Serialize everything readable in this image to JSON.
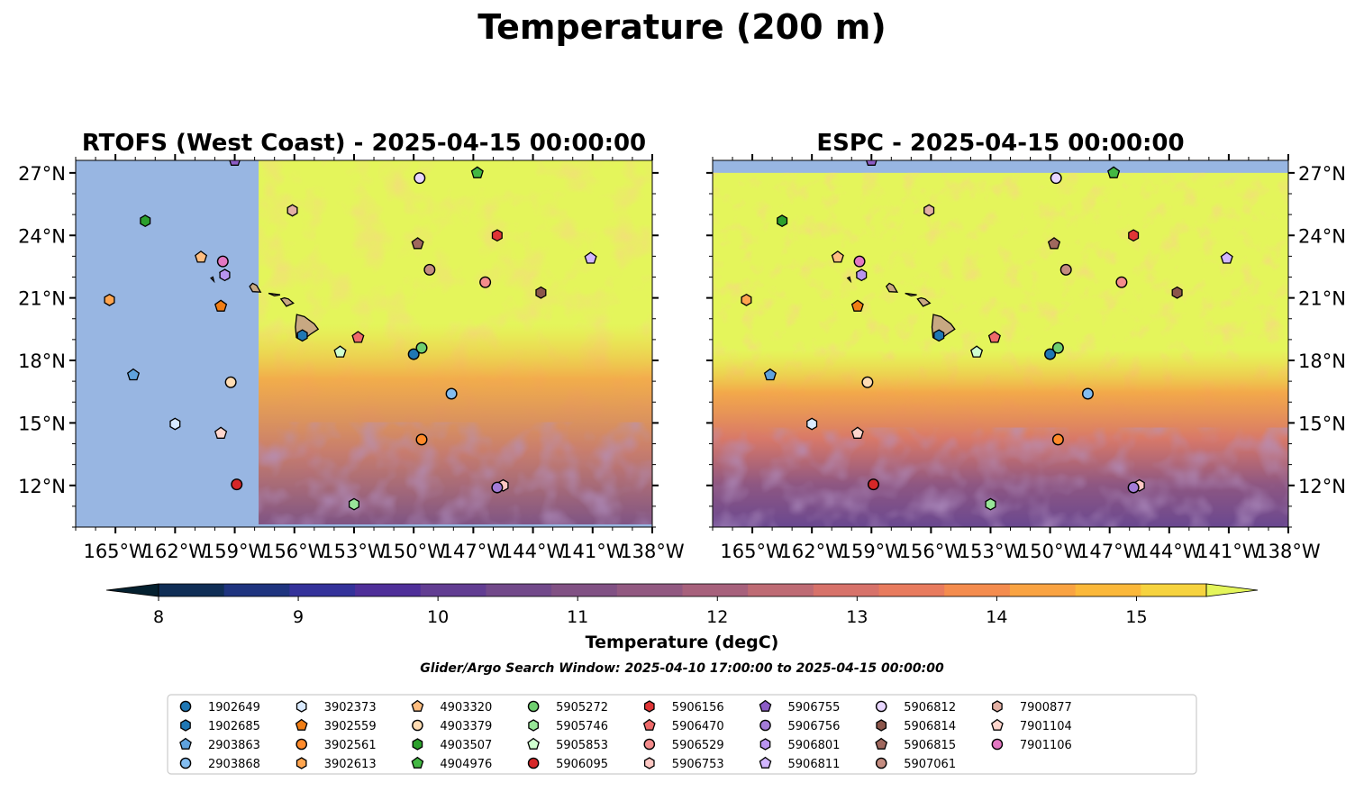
{
  "figure": {
    "title": "Temperature (200 m)",
    "search_window": "Glider/Argo Search Window: 2025-04-10 17:00:00 to 2025-04-15 00:00:00"
  },
  "panels": [
    {
      "title": "RTOFS (West Coast) - 2025-04-15 00:00:00",
      "ylabels_side": "left",
      "model_domain_west_lon": -157.8
    },
    {
      "title": "ESPC - 2025-04-15 00:00:00",
      "ylabels_side": "right",
      "model_domain_north_lat": 27.0
    }
  ],
  "axes": {
    "lon_range": [
      -167,
      -138
    ],
    "lat_range": [
      10,
      27.6
    ],
    "lon_ticks": [
      -165,
      -162,
      -159,
      -156,
      -153,
      -150,
      -147,
      -144,
      -141,
      -138
    ],
    "lon_labels": [
      "165°W",
      "162°W",
      "159°W",
      "156°W",
      "153°W",
      "150°W",
      "147°W",
      "144°W",
      "141°W",
      "138°W"
    ],
    "lat_ticks": [
      12,
      15,
      18,
      21,
      24,
      27
    ],
    "lat_labels": [
      "12°N",
      "15°N",
      "18°N",
      "21°N",
      "24°N",
      "27°N"
    ]
  },
  "colorbar": {
    "label": "Temperature (degC)",
    "range": [
      8,
      15.5
    ],
    "tick_values": [
      8,
      9,
      10,
      11,
      12,
      13,
      14,
      15
    ],
    "tick_labels": [
      "8",
      "9",
      "10",
      "11",
      "12",
      "13",
      "14",
      "15"
    ],
    "extend": "both",
    "colors": [
      "#04202f",
      "#102e56",
      "#1f347f",
      "#34329a",
      "#4f2f99",
      "#623d92",
      "#72498a",
      "#815184",
      "#925981",
      "#a7617c",
      "#be6b74",
      "#d7726a",
      "#e87b5e",
      "#f48c4e",
      "#f9a342",
      "#fbb83a",
      "#f6d33f",
      "#e4f55b"
    ]
  },
  "colors": {
    "land": "#c8a882",
    "no_data": "#98b6e2",
    "warm": "#e4f55b"
  },
  "chart_data": {
    "type": "map",
    "variable": "Temperature (200 m)",
    "units": "degC",
    "panels": [
      "RTOFS (West Coast)",
      "ESPC"
    ],
    "valid_time": "2025-04-15 00:00:00",
    "colorbar_range": [
      8,
      15.5
    ],
    "platforms": [
      {
        "id": "1902649",
        "marker": "circle",
        "color": "#1f77b4",
        "lon": -150.0,
        "lat": 18.3
      },
      {
        "id": "1902685",
        "marker": "hexagon",
        "color": "#1f77b4",
        "lon": -155.6,
        "lat": 19.2
      },
      {
        "id": "2903863",
        "marker": "pentagon",
        "color": "#5fa2dd",
        "lon": -164.1,
        "lat": 17.3
      },
      {
        "id": "2903868",
        "marker": "circle",
        "color": "#83bdf0",
        "lon": -148.1,
        "lat": 16.4
      },
      {
        "id": "3902373",
        "marker": "hexagon",
        "color": "#d9eaff",
        "lon": -162.0,
        "lat": 14.95
      },
      {
        "id": "3902559",
        "marker": "pentagon",
        "color": "#f07d14",
        "lon": -159.7,
        "lat": 20.6
      },
      {
        "id": "3902561",
        "marker": "circle",
        "color": "#ff8a2a",
        "lon": -149.6,
        "lat": 14.2
      },
      {
        "id": "3902613",
        "marker": "hexagon",
        "color": "#ffa54f",
        "lon": -165.3,
        "lat": 20.9
      },
      {
        "id": "4903320",
        "marker": "pentagon",
        "color": "#ffbe80",
        "lon": -160.7,
        "lat": 22.95
      },
      {
        "id": "4903379",
        "marker": "circle",
        "color": "#ffdcb3",
        "lon": -159.2,
        "lat": 16.95
      },
      {
        "id": "4903507",
        "marker": "hexagon",
        "color": "#2ca02c",
        "lon": -163.5,
        "lat": 24.7
      },
      {
        "id": "4904976",
        "marker": "pentagon",
        "color": "#43b843",
        "lon": -146.8,
        "lat": 27.0
      },
      {
        "id": "5905272",
        "marker": "circle",
        "color": "#6fcf6f",
        "lon": -149.6,
        "lat": 18.6
      },
      {
        "id": "5905746",
        "marker": "hexagon",
        "color": "#98e698",
        "lon": -153.0,
        "lat": 11.1
      },
      {
        "id": "5905853",
        "marker": "pentagon",
        "color": "#cfffcf",
        "lon": -153.7,
        "lat": 18.4
      },
      {
        "id": "5906095",
        "marker": "circle",
        "color": "#d62728",
        "lon": -158.9,
        "lat": 12.05
      },
      {
        "id": "5906156",
        "marker": "hexagon",
        "color": "#e03536",
        "lon": -145.8,
        "lat": 24.0
      },
      {
        "id": "5906470",
        "marker": "pentagon",
        "color": "#ee6a6a",
        "lon": -152.8,
        "lat": 19.1
      },
      {
        "id": "5906529",
        "marker": "circle",
        "color": "#f48c8c",
        "lon": -146.4,
        "lat": 21.75
      },
      {
        "id": "5906753",
        "marker": "hexagon",
        "color": "#ffc8c4",
        "lon": -145.5,
        "lat": 12.0
      },
      {
        "id": "5906755",
        "marker": "pentagon",
        "color": "#8c5cc6",
        "lon": -159.0,
        "lat": 27.6
      },
      {
        "id": "5906756",
        "marker": "circle",
        "color": "#a37cd8",
        "lon": -145.8,
        "lat": 11.9
      },
      {
        "id": "5906801",
        "marker": "hexagon",
        "color": "#b894ef",
        "lon": -159.5,
        "lat": 22.1
      },
      {
        "id": "5906811",
        "marker": "pentagon",
        "color": "#d2b6ff",
        "lon": -141.1,
        "lat": 22.9
      },
      {
        "id": "5906812",
        "marker": "circle",
        "color": "#e8d6ff",
        "lon": -149.7,
        "lat": 26.75
      },
      {
        "id": "5906814",
        "marker": "hexagon",
        "color": "#8c564b",
        "lon": -143.6,
        "lat": 21.25
      },
      {
        "id": "5906815",
        "marker": "pentagon",
        "color": "#a0685e",
        "lon": -149.8,
        "lat": 23.6
      },
      {
        "id": "5907061",
        "marker": "circle",
        "color": "#c48c80",
        "lon": -149.2,
        "lat": 22.35
      },
      {
        "id": "7900877",
        "marker": "hexagon",
        "color": "#e3b0a4",
        "lon": -156.1,
        "lat": 25.2
      },
      {
        "id": "7901104",
        "marker": "pentagon",
        "color": "#ffd6cd",
        "lon": -159.7,
        "lat": 14.5
      },
      {
        "id": "7901106",
        "marker": "circle",
        "color": "#e377c2",
        "lon": -159.6,
        "lat": 22.75
      }
    ]
  }
}
